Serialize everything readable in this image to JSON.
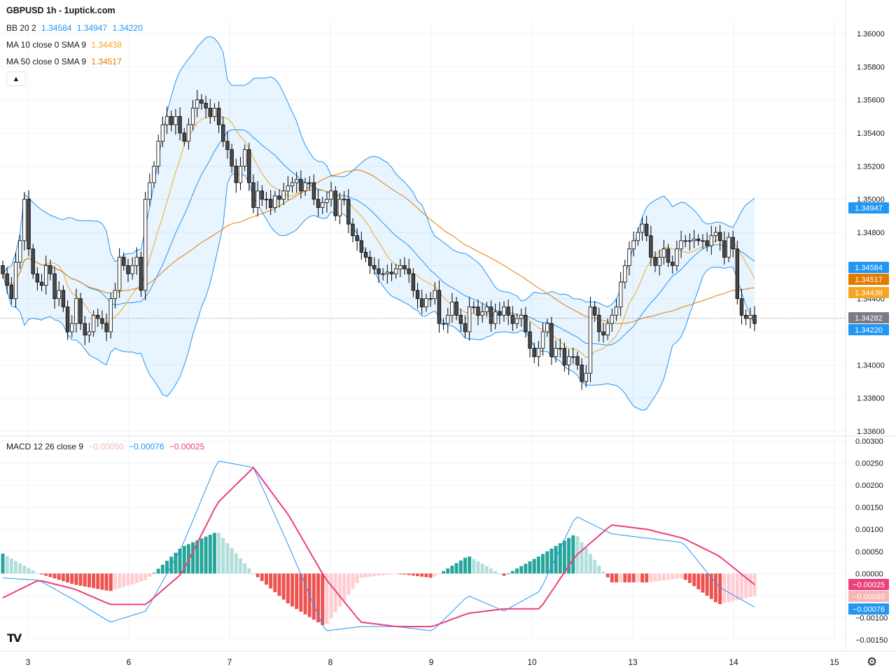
{
  "header": {
    "title": "GBPUSD 1h - 1uptick.com",
    "bb": {
      "label": "BB 20 2",
      "basis": "1.34584",
      "upper": "1.34947",
      "lower": "1.34220",
      "color": "#2196f3"
    },
    "ma10": {
      "label": "MA 10 close 0 SMA 9",
      "value": "1.34438",
      "color": "#f5a623"
    },
    "ma50": {
      "label": "MA 50 close 0 SMA 9",
      "value": "1.34517",
      "color": "#e07b00"
    },
    "macd": {
      "label": "MACD 12 26 close 9",
      "hist": "−0.00050",
      "macd": "−0.00076",
      "signal": "−0.00025",
      "hist_color": "#f7b5b5",
      "macd_color": "#2196f3",
      "signal_color": "#ec407a"
    }
  },
  "price_tags": [
    {
      "text": "1.34947",
      "value": 1.34947,
      "color": "#2196f3"
    },
    {
      "text": "1.34584",
      "value": 1.34584,
      "color": "#2196f3"
    },
    {
      "text": "1.34517",
      "value": 1.34517,
      "color": "#e07b00"
    },
    {
      "text": "1.34438",
      "value": 1.34438,
      "color": "#f5a623"
    },
    {
      "text": "1.34282",
      "value": 1.34282,
      "color": "#787b86"
    },
    {
      "text": "1.34220",
      "value": 1.3422,
      "color": "#2196f3"
    }
  ],
  "macd_tags": [
    {
      "text": "−0.00025",
      "value": -0.00025,
      "color": "#ec407a"
    },
    {
      "text": "−0.00050",
      "value": -0.0005,
      "color": "#f7b5b5"
    },
    {
      "text": "−0.00076",
      "value": -0.00076,
      "color": "#2196f3"
    }
  ],
  "chart_data": [
    {
      "type": "candlestick",
      "title": "GBPUSD 1h - 1uptick.com",
      "yticks": [
        "1.36000",
        "1.35800",
        "1.35600",
        "1.35400",
        "1.35200",
        "1.35000",
        "1.34800",
        "1.34600",
        "1.34400",
        "1.34200",
        "1.34000",
        "1.33800",
        "1.33600"
      ],
      "ylim": [
        1.3358,
        1.3605
      ],
      "last_price": 1.34282,
      "x_labels": [
        "3",
        "6",
        "7",
        "8",
        "9",
        "10",
        "13",
        "14",
        "15"
      ],
      "grid": true,
      "close_series": [
        1.3455,
        1.3448,
        1.344,
        1.3462,
        1.3475,
        1.35,
        1.347,
        1.3455,
        1.345,
        1.3448,
        1.346,
        1.3455,
        1.344,
        1.3445,
        1.3435,
        1.342,
        1.3425,
        1.344,
        1.3425,
        1.3418,
        1.342,
        1.343,
        1.3428,
        1.3425,
        1.342,
        1.344,
        1.3445,
        1.3465,
        1.346,
        1.3455,
        1.346,
        1.3465,
        1.3445,
        1.35,
        1.351,
        1.352,
        1.3535,
        1.3545,
        1.355,
        1.3545,
        1.355,
        1.354,
        1.3535,
        1.3545,
        1.3555,
        1.356,
        1.3558,
        1.3555,
        1.355,
        1.3555,
        1.3545,
        1.3535,
        1.353,
        1.352,
        1.351,
        1.352,
        1.353,
        1.351,
        1.3495,
        1.3505,
        1.35,
        1.35,
        1.3495,
        1.3502,
        1.35,
        1.3505,
        1.3508,
        1.351,
        1.3512,
        1.3505,
        1.351,
        1.351,
        1.35,
        1.3495,
        1.3498,
        1.35,
        1.3505,
        1.349,
        1.35,
        1.35,
        1.3485,
        1.3478,
        1.3475,
        1.3468,
        1.3465,
        1.346,
        1.3458,
        1.3455,
        1.3455,
        1.3456,
        1.3455,
        1.3458,
        1.346,
        1.3458,
        1.3455,
        1.3445,
        1.344,
        1.3435,
        1.344,
        1.344,
        1.3445,
        1.3425,
        1.3425,
        1.343,
        1.3438,
        1.343,
        1.3425,
        1.342,
        1.3435,
        1.3435,
        1.343,
        1.3432,
        1.3435,
        1.3425,
        1.3432,
        1.343,
        1.3435,
        1.343,
        1.3425,
        1.3428,
        1.343,
        1.342,
        1.341,
        1.3405,
        1.341,
        1.342,
        1.3425,
        1.3405,
        1.341,
        1.341,
        1.34,
        1.3405,
        1.3405,
        1.34,
        1.339,
        1.3395,
        1.3435,
        1.343,
        1.342,
        1.3418,
        1.3425,
        1.343,
        1.3435,
        1.345,
        1.346,
        1.347,
        1.3475,
        1.348,
        1.3485,
        1.3478,
        1.3465,
        1.346,
        1.3465,
        1.347,
        1.3462,
        1.346,
        1.347,
        1.3475,
        1.3475,
        1.3475,
        1.3476,
        1.3475,
        1.3475,
        1.3472,
        1.3478,
        1.348,
        1.3475,
        1.3465,
        1.3477,
        1.347,
        1.344,
        1.343,
        1.3428,
        1.343,
        1.3425
      ]
    },
    {
      "type": "macd",
      "title": "MACD 12 26 close 9",
      "yticks": [
        "0.00300",
        "0.00250",
        "0.00200",
        "0.00150",
        "0.00100",
        "0.00050",
        "0.00000",
        "−0.00050",
        "−0.00100",
        "−0.00150"
      ],
      "ylim": [
        -0.0017,
        0.0031
      ],
      "series": [
        {
          "name": "MACD",
          "values": [
            -0.0001,
            -0.00015,
            -0.0006,
            -0.0011,
            -0.00085,
            0.0006,
            0.00255,
            0.0024,
            0.0006,
            -0.0013,
            -0.0012,
            -0.0012,
            -0.0013,
            -0.0005,
            -0.00085,
            -0.0004,
            0.0013,
            0.0009,
            0.0008,
            0.0007,
            -0.0003,
            -0.00076
          ]
        },
        {
          "name": "Signal",
          "values": [
            -0.00055,
            -0.00015,
            -0.00035,
            -0.0007,
            -0.0007,
            0.0,
            0.0016,
            0.0024,
            0.0013,
            -0.0001,
            -0.0011,
            -0.0012,
            -0.0012,
            -0.0009,
            -0.0008,
            -0.0008,
            0.0004,
            0.0011,
            0.001,
            0.0008,
            0.0004,
            -0.00025
          ]
        },
        {
          "name": "Histogram",
          "values": [
            0.00025,
            0.0004,
            0.0,
            -0.00035,
            -0.0004,
            0.00035,
            0.00075,
            0.00025,
            -0.00015,
            -0.00075,
            -0.0001,
            0.0,
            -5e-05,
            0.0001,
            0.0001,
            -0.0001,
            0.0005,
            0.0002,
            -0.0001,
            -0.0001,
            -0.0003,
            -0.0005
          ]
        }
      ]
    }
  ]
}
